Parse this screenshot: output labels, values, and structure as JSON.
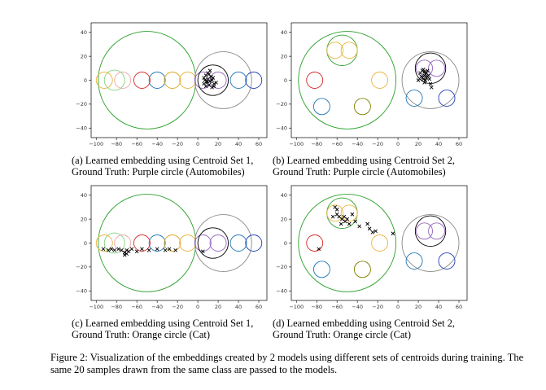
{
  "figure": {
    "caption": "Figure 2: Visualization of the embeddings created by 2 models using different sets of centroids during training. The same 20 samples drawn from the same class are passed to the models.",
    "panels": [
      {
        "caption_line1": "(a) Learned embedding using Centroid Set 1,",
        "caption_line2": "Ground Truth: Purple circle (Automobiles)",
        "chart_data": {
          "type": "scatter",
          "xlim": [
            -105,
            68
          ],
          "ylim": [
            -48,
            48
          ],
          "xticks": [
            -100,
            -80,
            -60,
            -40,
            -20,
            0,
            20,
            40,
            60
          ],
          "yticks": [
            40,
            20,
            0,
            -20,
            -40
          ],
          "grid": false,
          "circles": [
            {
              "cx": -50,
              "cy": 0,
              "r": 48,
              "color": "#2ca02c"
            },
            {
              "cx": 25,
              "cy": 0,
              "r": 28,
              "color": "#888888"
            },
            {
              "cx": -82,
              "cy": 0,
              "r": 10,
              "color": "#7fd67f"
            },
            {
              "cx": -92,
              "cy": 0,
              "r": 8,
              "color": "#e8b43c"
            },
            {
              "cx": -74,
              "cy": 0,
              "r": 8,
              "color": "#e8a8a8"
            },
            {
              "cx": -55,
              "cy": 0,
              "r": 8,
              "color": "#d62728"
            },
            {
              "cx": -40,
              "cy": 0,
              "r": 8,
              "color": "#1f77b4"
            },
            {
              "cx": -25,
              "cy": 0,
              "r": 8,
              "color": "#d9a520"
            },
            {
              "cx": -10,
              "cy": 0,
              "r": 8,
              "color": "#e8b43c"
            },
            {
              "cx": 5,
              "cy": 0,
              "r": 8,
              "color": "#9467bd"
            },
            {
              "cx": 15,
              "cy": 0,
              "r": 15,
              "color": "#000000"
            },
            {
              "cx": 20,
              "cy": 0,
              "r": 8,
              "color": "#9467bd"
            },
            {
              "cx": 40,
              "cy": 0,
              "r": 8,
              "color": "#1f77b4"
            },
            {
              "cx": 55,
              "cy": 0,
              "r": 8,
              "color": "#1f3fb4"
            }
          ],
          "points": [
            [
              8,
              4
            ],
            [
              10,
              6
            ],
            [
              12,
              8
            ],
            [
              6,
              2
            ],
            [
              9,
              -2
            ],
            [
              11,
              -4
            ],
            [
              14,
              -6
            ],
            [
              16,
              -3
            ],
            [
              18,
              -2
            ],
            [
              7,
              0
            ],
            [
              10,
              1
            ],
            [
              12,
              -1
            ],
            [
              15,
              2
            ],
            [
              8,
              -5
            ],
            [
              13,
              3
            ],
            [
              11,
              5
            ],
            [
              9,
              -1
            ],
            [
              16,
              -5
            ],
            [
              6,
              -3
            ],
            [
              14,
              0
            ]
          ]
        }
      },
      {
        "caption_line1": "(b) Learned embedding using Centroid Set 2,",
        "caption_line2": "Ground Truth: Purple circle (Automobiles)",
        "chart_data": {
          "type": "scatter",
          "xlim": [
            -105,
            68
          ],
          "ylim": [
            -48,
            48
          ],
          "xticks": [
            -100,
            -80,
            -60,
            -40,
            -20,
            0,
            20,
            40,
            60
          ],
          "yticks": [
            40,
            20,
            0,
            -20,
            -40
          ],
          "grid": false,
          "circles": [
            {
              "cx": -50,
              "cy": 0,
              "r": 48,
              "color": "#2ca02c"
            },
            {
              "cx": 32,
              "cy": 0,
              "r": 28,
              "color": "#888888"
            },
            {
              "cx": -55,
              "cy": 25,
              "r": 15,
              "color": "#2ca02c"
            },
            {
              "cx": -62,
              "cy": 25,
              "r": 8,
              "color": "#e8b43c"
            },
            {
              "cx": -48,
              "cy": 25,
              "r": 8,
              "color": "#e8b43c"
            },
            {
              "cx": -82,
              "cy": 0,
              "r": 8,
              "color": "#d62728"
            },
            {
              "cx": -75,
              "cy": -22,
              "r": 8,
              "color": "#1f77b4"
            },
            {
              "cx": -35,
              "cy": -22,
              "r": 8,
              "color": "#7f7f00"
            },
            {
              "cx": -18,
              "cy": 0,
              "r": 8,
              "color": "#e8b43c"
            },
            {
              "cx": 32,
              "cy": 10,
              "r": 15,
              "color": "#000000"
            },
            {
              "cx": 26,
              "cy": 10,
              "r": 8,
              "color": "#9467bd"
            },
            {
              "cx": 38,
              "cy": 10,
              "r": 8,
              "color": "#9467bd"
            },
            {
              "cx": 16,
              "cy": -15,
              "r": 8,
              "color": "#1f77b4"
            },
            {
              "cx": 48,
              "cy": -15,
              "r": 8,
              "color": "#1f3fb4"
            }
          ],
          "points": [
            [
              22,
              6
            ],
            [
              24,
              8
            ],
            [
              26,
              4
            ],
            [
              28,
              2
            ],
            [
              20,
              0
            ],
            [
              25,
              1
            ],
            [
              27,
              5
            ],
            [
              29,
              8
            ],
            [
              23,
              3
            ],
            [
              30,
              4
            ],
            [
              26,
              -2
            ],
            [
              32,
              -3
            ],
            [
              28,
              6
            ],
            [
              24,
              2
            ],
            [
              26,
              7
            ],
            [
              31,
              1
            ],
            [
              33,
              -6
            ],
            [
              25,
              9
            ],
            [
              27,
              0
            ],
            [
              29,
              3
            ]
          ]
        }
      },
      {
        "caption_line1": "(c) Learned embedding using Centroid Set 1,",
        "caption_line2": "Ground Truth: Orange circle (Cat)",
        "chart_data": {
          "type": "scatter",
          "xlim": [
            -105,
            68
          ],
          "ylim": [
            -48,
            48
          ],
          "xticks": [
            -100,
            -80,
            -60,
            -40,
            -20,
            0,
            20,
            40,
            60
          ],
          "yticks": [
            40,
            20,
            0,
            -20,
            -40
          ],
          "grid": false,
          "circles": [
            {
              "cx": -50,
              "cy": 0,
              "r": 48,
              "color": "#2ca02c"
            },
            {
              "cx": 25,
              "cy": 0,
              "r": 28,
              "color": "#888888"
            },
            {
              "cx": -82,
              "cy": 0,
              "r": 10,
              "color": "#7fd67f"
            },
            {
              "cx": -92,
              "cy": 0,
              "r": 8,
              "color": "#e8b43c"
            },
            {
              "cx": -74,
              "cy": 0,
              "r": 8,
              "color": "#e8a8a8"
            },
            {
              "cx": -55,
              "cy": 0,
              "r": 8,
              "color": "#d62728"
            },
            {
              "cx": -40,
              "cy": 0,
              "r": 8,
              "color": "#1f77b4"
            },
            {
              "cx": -25,
              "cy": 0,
              "r": 8,
              "color": "#d9a520"
            },
            {
              "cx": -10,
              "cy": 0,
              "r": 8,
              "color": "#e8b43c"
            },
            {
              "cx": 5,
              "cy": 0,
              "r": 8,
              "color": "#9467bd"
            },
            {
              "cx": 15,
              "cy": 0,
              "r": 15,
              "color": "#000000"
            },
            {
              "cx": 20,
              "cy": 0,
              "r": 8,
              "color": "#9467bd"
            },
            {
              "cx": 40,
              "cy": 0,
              "r": 8,
              "color": "#1f77b4"
            },
            {
              "cx": 55,
              "cy": 0,
              "r": 8,
              "color": "#1f3fb4"
            }
          ],
          "points": [
            [
              -93,
              -5
            ],
            [
              -88,
              -6
            ],
            [
              -85,
              -5
            ],
            [
              -82,
              -6
            ],
            [
              -78,
              -5
            ],
            [
              -75,
              -6
            ],
            [
              -72,
              -8
            ],
            [
              -70,
              -6
            ],
            [
              -68,
              -7
            ],
            [
              -65,
              -5
            ],
            [
              -72,
              -10
            ],
            [
              -70,
              -9
            ],
            [
              -60,
              -7
            ],
            [
              -55,
              -5
            ],
            [
              -48,
              -6
            ],
            [
              -40,
              -5
            ],
            [
              -32,
              -6
            ],
            [
              -28,
              -5
            ],
            [
              -22,
              -6
            ],
            [
              5,
              -7
            ]
          ]
        }
      },
      {
        "caption_line1": "(d) Learned embedding using Centroid Set 2,",
        "caption_line2": "Ground Truth: Orange circle (Cat)",
        "chart_data": {
          "type": "scatter",
          "xlim": [
            -105,
            68
          ],
          "ylim": [
            -48,
            48
          ],
          "xticks": [
            -100,
            -80,
            -60,
            -40,
            -20,
            0,
            20,
            40,
            60
          ],
          "yticks": [
            40,
            20,
            0,
            -20,
            -40
          ],
          "grid": false,
          "circles": [
            {
              "cx": -50,
              "cy": 0,
              "r": 48,
              "color": "#2ca02c"
            },
            {
              "cx": 32,
              "cy": 0,
              "r": 28,
              "color": "#888888"
            },
            {
              "cx": -55,
              "cy": 25,
              "r": 15,
              "color": "#2ca02c"
            },
            {
              "cx": -62,
              "cy": 25,
              "r": 8,
              "color": "#e8b43c"
            },
            {
              "cx": -48,
              "cy": 25,
              "r": 8,
              "color": "#e8b43c"
            },
            {
              "cx": -82,
              "cy": 0,
              "r": 8,
              "color": "#d62728"
            },
            {
              "cx": -75,
              "cy": -22,
              "r": 8,
              "color": "#1f77b4"
            },
            {
              "cx": -35,
              "cy": -22,
              "r": 8,
              "color": "#7f7f00"
            },
            {
              "cx": -18,
              "cy": 0,
              "r": 8,
              "color": "#e8b43c"
            },
            {
              "cx": 32,
              "cy": 10,
              "r": 15,
              "color": "#000000"
            },
            {
              "cx": 26,
              "cy": 10,
              "r": 8,
              "color": "#9467bd"
            },
            {
              "cx": 38,
              "cy": 10,
              "r": 8,
              "color": "#9467bd"
            },
            {
              "cx": 16,
              "cy": -15,
              "r": 8,
              "color": "#1f77b4"
            },
            {
              "cx": 48,
              "cy": -15,
              "r": 8,
              "color": "#1f3fb4"
            }
          ],
          "points": [
            [
              -62,
              30
            ],
            [
              -60,
              28
            ],
            [
              -64,
              22
            ],
            [
              -58,
              22
            ],
            [
              -55,
              20
            ],
            [
              -52,
              18
            ],
            [
              -50,
              20
            ],
            [
              -56,
              16
            ],
            [
              -48,
              16
            ],
            [
              -45,
              24
            ],
            [
              -42,
              18
            ],
            [
              -38,
              14
            ],
            [
              -30,
              16
            ],
            [
              -28,
              12
            ],
            [
              -25,
              9
            ],
            [
              -22,
              10
            ],
            [
              -5,
              8
            ],
            [
              -78,
              -5
            ],
            [
              -60,
              24
            ],
            [
              -53,
              22
            ]
          ]
        }
      }
    ]
  }
}
